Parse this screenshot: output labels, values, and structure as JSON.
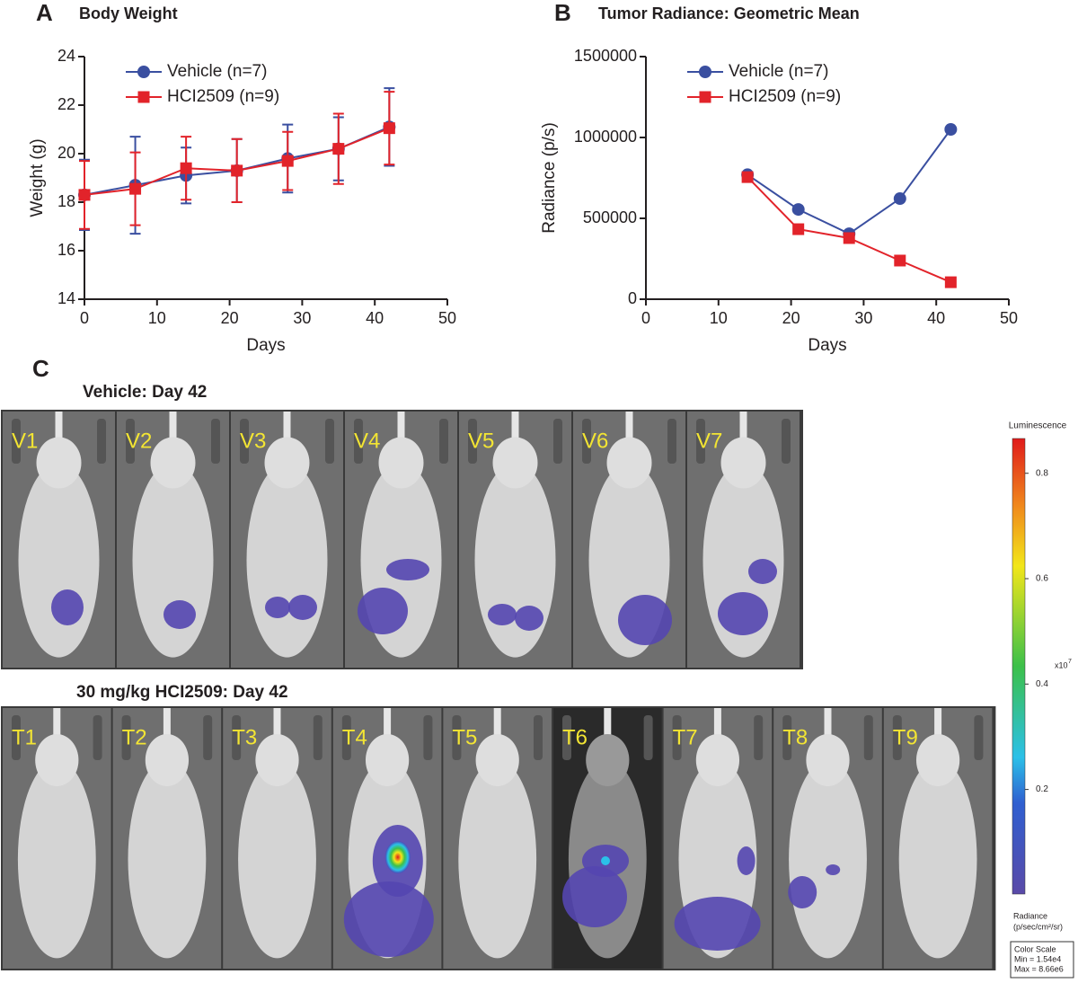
{
  "chart_data": [
    {
      "type": "line",
      "panel": "A",
      "title": "Body Weight",
      "x_label": "Days",
      "y_label": "Weight (g)",
      "x": [
        0,
        7,
        14,
        21,
        28,
        35,
        42
      ],
      "xlim": [
        0,
        50
      ],
      "xticks": [
        0,
        10,
        20,
        30,
        40,
        50
      ],
      "ylim": [
        14,
        24
      ],
      "yticks": [
        14,
        16,
        18,
        20,
        22,
        24
      ],
      "series": [
        {
          "name": "Vehicle (n=7)",
          "color": "#3a4fa0",
          "marker": "circle",
          "values": [
            18.3,
            18.7,
            19.1,
            19.3,
            19.8,
            20.2,
            21.1
          ],
          "errors": [
            1.45,
            2.0,
            1.15,
            1.3,
            1.4,
            1.3,
            1.6
          ]
        },
        {
          "name": "HCI2509 (n=9)",
          "color": "#e2232a",
          "marker": "square",
          "values": [
            18.3,
            18.55,
            19.4,
            19.3,
            19.7,
            20.2,
            21.05
          ],
          "errors": [
            1.4,
            1.5,
            1.3,
            1.3,
            1.2,
            1.45,
            1.5
          ]
        }
      ]
    },
    {
      "type": "line",
      "panel": "B",
      "title": "Tumor Radiance: Geometric Mean",
      "x_label": "Days",
      "y_label": "Radiance (p/s)",
      "x": [
        14,
        21,
        28,
        35,
        42
      ],
      "xlim": [
        0,
        50
      ],
      "xticks": [
        0,
        10,
        20,
        30,
        40,
        50
      ],
      "ylim": [
        0,
        1500000
      ],
      "yticks": [
        0,
        500000,
        1000000,
        1500000
      ],
      "series": [
        {
          "name": "Vehicle (n=7)",
          "color": "#3a4fa0",
          "marker": "circle",
          "values": [
            770000,
            555000,
            405000,
            622000,
            1050000
          ]
        },
        {
          "name": "HCI2509 (n=9)",
          "color": "#e2232a",
          "marker": "square",
          "values": [
            755000,
            433000,
            378000,
            239000,
            105000
          ]
        }
      ]
    }
  ],
  "panel_c": {
    "label": "C",
    "groups": [
      {
        "title": "Vehicle: Day 42",
        "mice": [
          "V1",
          "V2",
          "V3",
          "V4",
          "V5",
          "V6",
          "V7"
        ]
      },
      {
        "title": "30 mg/kg HCI2509: Day 42",
        "mice": [
          "T1",
          "T2",
          "T3",
          "T4",
          "T5",
          "T6",
          "T7",
          "T8",
          "T9"
        ]
      }
    ],
    "color_scale": {
      "title": "Luminescence",
      "range": [
        0.00154,
        0.866
      ],
      "ticks": [
        0.2,
        0.4,
        0.6,
        0.8
      ],
      "multiplier": "x10",
      "exponent": "7",
      "unit_title": "Radiance",
      "unit": "(p/sec/cm²/sr)",
      "box_title": "Color Scale",
      "min_label": "Min = 1.54e4",
      "max_label": "Max = 8.66e6"
    }
  }
}
